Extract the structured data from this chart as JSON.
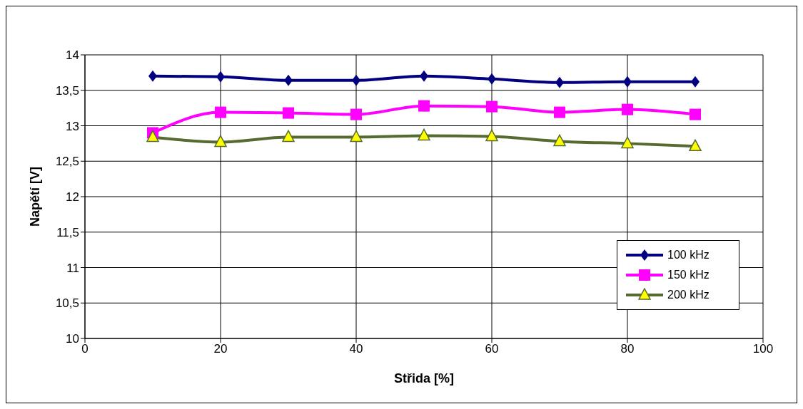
{
  "chart_data": {
    "type": "line",
    "xlabel": "Střida [%]",
    "ylabel": "Napětí [V]",
    "x": [
      10,
      20,
      30,
      40,
      50,
      60,
      70,
      80,
      90
    ],
    "series": [
      {
        "name": "100 kHz",
        "color": "#000080",
        "marker": "diamond",
        "values": [
          13.7,
          13.69,
          13.64,
          13.64,
          13.7,
          13.66,
          13.61,
          13.62,
          13.62
        ]
      },
      {
        "name": "150 kHz",
        "color": "#ff00ff",
        "marker": "square",
        "values": [
          12.9,
          13.19,
          13.18,
          13.16,
          13.28,
          13.27,
          13.19,
          13.23,
          13.16
        ]
      },
      {
        "name": "200 kHz",
        "color": "#556b2f",
        "marker": "triangle",
        "values": [
          12.84,
          12.77,
          12.84,
          12.84,
          12.86,
          12.85,
          12.78,
          12.75,
          12.71
        ]
      }
    ],
    "xlim": [
      0,
      100
    ],
    "xticks": [
      0,
      20,
      40,
      60,
      80,
      100
    ],
    "ylim": [
      10,
      14
    ],
    "yticks": [
      10,
      {
        "value": 10.5,
        "label": "10,5"
      },
      11,
      {
        "value": 11.5,
        "label": "11,5"
      },
      12,
      {
        "value": 12.5,
        "label": "12,5"
      },
      13,
      {
        "value": 13.5,
        "label": "13,5"
      },
      14
    ],
    "grid": true,
    "legend": "bottom right"
  }
}
